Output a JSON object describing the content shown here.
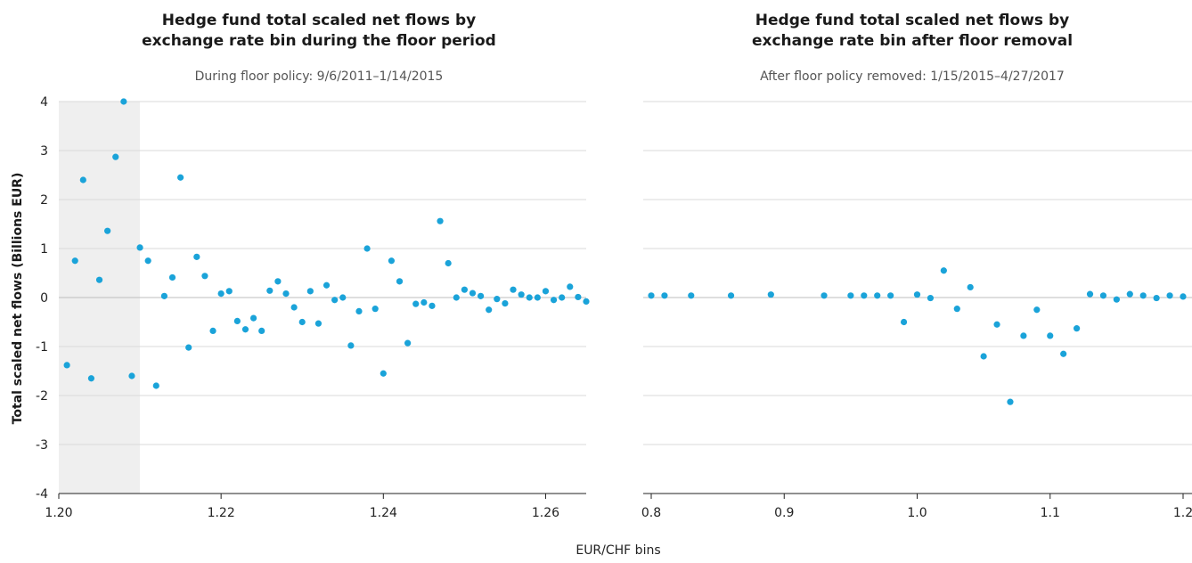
{
  "figure": {
    "xlabel": "EUR/CHF bins",
    "ylabel": "Total scaled net flows (Billions EUR)",
    "point_color": "#1aa3d9"
  },
  "chart_data": [
    {
      "type": "scatter",
      "title_lines": [
        "Hedge fund total scaled net flows by",
        "exchange rate bin during the floor period"
      ],
      "subtitle": "During floor policy: 9/6/2011–1/14/2015",
      "xlim": [
        1.2,
        1.265
      ],
      "ylim": [
        -4,
        4
      ],
      "xticks": [
        1.2,
        1.22,
        1.24,
        1.26
      ],
      "xtick_labels": [
        "1.20",
        "1.22",
        "1.24",
        "1.26"
      ],
      "yticks": [
        4,
        3,
        2,
        1,
        0,
        -1,
        -2,
        -3,
        -4
      ],
      "ytick_labels": [
        "4",
        "3",
        "2",
        "1",
        "0",
        "-1",
        "-2",
        "-3",
        "-4"
      ],
      "grid": true,
      "shaded_region": [
        1.2,
        1.21
      ],
      "x": [
        1.201,
        1.202,
        1.203,
        1.204,
        1.205,
        1.206,
        1.207,
        1.208,
        1.209,
        1.21,
        1.211,
        1.212,
        1.213,
        1.214,
        1.215,
        1.216,
        1.217,
        1.218,
        1.219,
        1.22,
        1.221,
        1.222,
        1.223,
        1.224,
        1.225,
        1.226,
        1.227,
        1.228,
        1.229,
        1.23,
        1.231,
        1.232,
        1.233,
        1.234,
        1.235,
        1.236,
        1.237,
        1.238,
        1.239,
        1.24,
        1.241,
        1.242,
        1.243,
        1.244,
        1.245,
        1.246,
        1.247,
        1.248,
        1.249,
        1.25,
        1.251,
        1.252,
        1.253,
        1.254,
        1.255,
        1.256,
        1.257,
        1.258,
        1.259,
        1.26,
        1.261,
        1.262,
        1.263,
        1.264,
        1.265
      ],
      "y": [
        -1.38,
        0.75,
        2.4,
        -1.65,
        0.36,
        1.36,
        2.87,
        4.0,
        -1.6,
        1.02,
        0.75,
        -1.8,
        0.03,
        0.41,
        2.45,
        -1.02,
        0.83,
        0.44,
        -0.68,
        0.08,
        0.13,
        -0.48,
        -0.65,
        -0.42,
        -0.68,
        0.14,
        0.33,
        0.08,
        -0.2,
        -0.5,
        0.13,
        -0.53,
        0.25,
        -0.05,
        0.0,
        -0.98,
        -0.28,
        1.0,
        -0.23,
        -1.55,
        0.75,
        0.33,
        -0.93,
        -0.13,
        -0.1,
        -0.17,
        1.56,
        0.7,
        0.0,
        0.16,
        0.09,
        0.03,
        -0.25,
        -0.03,
        -0.12,
        0.16,
        0.06,
        0.0,
        0.0,
        0.13,
        -0.05,
        0.0,
        0.22,
        0.01,
        -0.08
      ]
    },
    {
      "type": "scatter",
      "title_lines": [
        "Hedge fund total scaled net flows by",
        "exchange rate bin after floor removal"
      ],
      "subtitle": "After floor policy removed: 1/15/2015–4/27/2017",
      "xlim": [
        0.8,
        1.2
      ],
      "ylim": [
        -4,
        4
      ],
      "xticks": [
        0.8,
        0.9,
        1.0,
        1.1,
        1.2
      ],
      "xtick_labels": [
        "0.8",
        "0.9",
        "1.0",
        "1.1",
        "1.2"
      ],
      "yticks": [
        4,
        3,
        2,
        1,
        0,
        -1,
        -2,
        -3,
        -4
      ],
      "grid": true,
      "x": [
        0.8,
        0.81,
        0.83,
        0.86,
        0.89,
        0.93,
        0.95,
        0.96,
        0.97,
        0.98,
        0.99,
        1.0,
        1.01,
        1.02,
        1.03,
        1.04,
        1.05,
        1.06,
        1.07,
        1.08,
        1.09,
        1.1,
        1.11,
        1.12,
        1.13,
        1.14,
        1.15,
        1.16,
        1.17,
        1.18,
        1.19,
        1.2
      ],
      "y": [
        0.04,
        0.04,
        0.04,
        0.04,
        0.06,
        0.04,
        0.04,
        0.04,
        0.04,
        0.04,
        -0.5,
        0.06,
        -0.01,
        0.55,
        -0.23,
        0.21,
        -1.2,
        -0.55,
        -2.13,
        -0.78,
        -0.25,
        -0.78,
        -1.15,
        -0.63,
        0.07,
        0.04,
        -0.04,
        0.07,
        0.04,
        -0.01,
        0.04,
        0.02
      ]
    }
  ]
}
